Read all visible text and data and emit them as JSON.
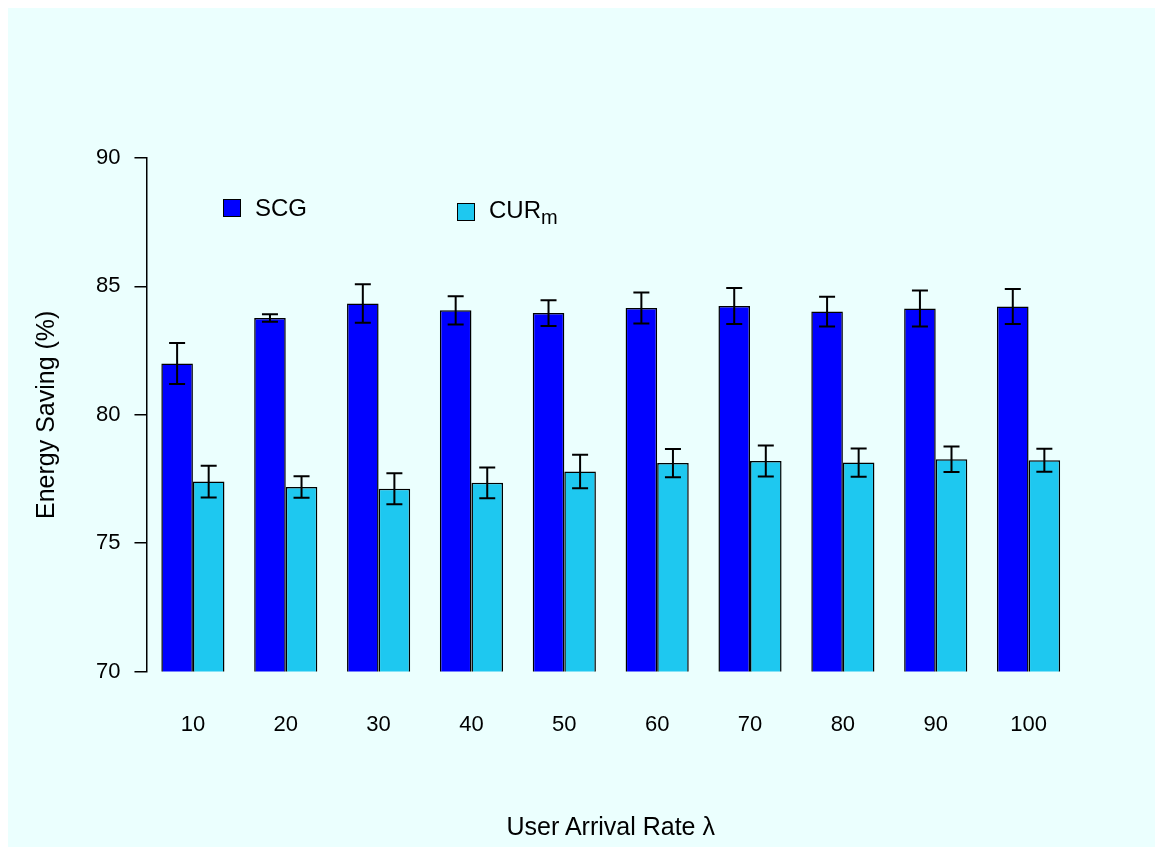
{
  "chart_data": {
    "type": "bar",
    "xlabel": "User Arrival Rate λ",
    "ylabel": "Energy Saving (%)",
    "categories": [
      "10",
      "20",
      "30",
      "40",
      "50",
      "60",
      "70",
      "80",
      "90",
      "100"
    ],
    "series": [
      {
        "name": "SCG",
        "color": "#0000ff",
        "values": [
          82.0,
          83.77,
          84.33,
          84.07,
          83.96,
          84.16,
          84.24,
          84.02,
          84.14,
          84.22
        ],
        "errors": [
          0.8,
          0.15,
          0.75,
          0.55,
          0.5,
          0.6,
          0.7,
          0.58,
          0.7,
          0.68
        ]
      },
      {
        "name": "CUR$_{m}$",
        "color": "#1ec8f0",
        "values": [
          77.4,
          77.19,
          77.12,
          77.35,
          77.79,
          78.12,
          78.2,
          78.14,
          78.27,
          78.23
        ],
        "errors": [
          0.62,
          0.42,
          0.6,
          0.6,
          0.65,
          0.55,
          0.6,
          0.55,
          0.5,
          0.45
        ]
      }
    ],
    "ylim": [
      70,
      90
    ],
    "yticks": [
      70,
      75,
      80,
      85,
      90
    ],
    "grid": false,
    "legend": "top left"
  }
}
